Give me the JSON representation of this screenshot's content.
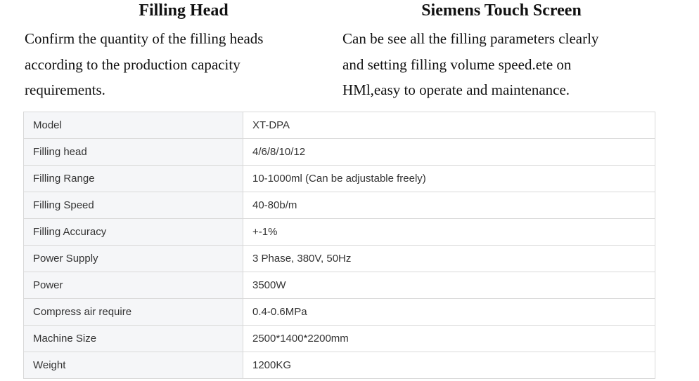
{
  "features": [
    {
      "title": "Filling Head",
      "lines": [
        "Confirm the quantity of the filling heads",
        "according to the production capacity",
        "requirements."
      ]
    },
    {
      "title": "Siemens Touch Screen",
      "lines": [
        "Can be see all the filling parameters clearly",
        "and setting filling volume speed.ete on",
        "HMl,easy to operate and maintenance."
      ]
    }
  ],
  "spec_table": {
    "rows": [
      {
        "label": "Model",
        "value": "XT-DPA"
      },
      {
        "label": "Filling head",
        "value": "4/6/8/10/12"
      },
      {
        "label": "Filling Range",
        "value": "10-1000ml (Can be adjustable freely)"
      },
      {
        "label": "Filling Speed",
        "value": "40-80b/m"
      },
      {
        "label": "Filling Accuracy",
        "value": "+-1%"
      },
      {
        "label": "Power Supply",
        "value": "3 Phase, 380V, 50Hz"
      },
      {
        "label": "Power",
        "value": "3500W"
      },
      {
        "label": "Compress air require",
        "value": "0.4-0.6MPa"
      },
      {
        "label": "Machine Size",
        "value": "2500*1400*2200mm"
      },
      {
        "label": "Weight",
        "value": "1200KG"
      }
    ],
    "colors": {
      "label_bg": "#f5f6f8",
      "border": "#d9d9d9",
      "text": "#333333"
    }
  }
}
